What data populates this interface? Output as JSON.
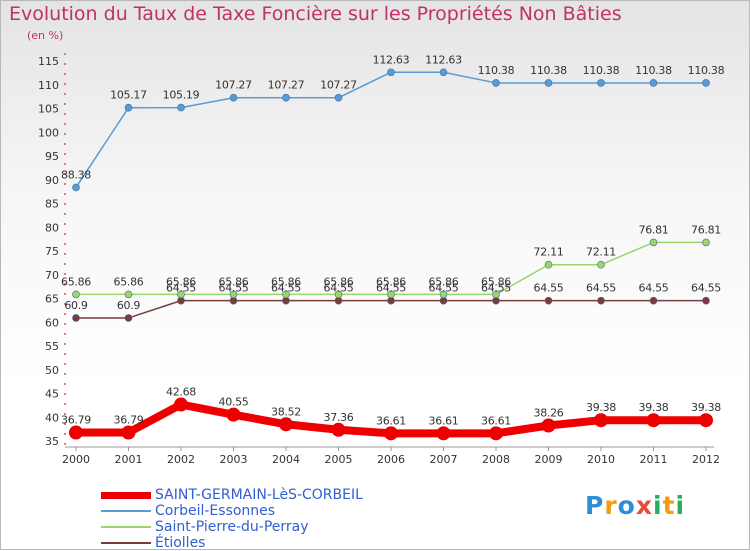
{
  "chart_data": {
    "type": "line",
    "title": "Evolution du Taux de Taxe Foncière sur les Propriétés Non Bâties",
    "unit_label": "(en %)",
    "x": [
      2000,
      2001,
      2002,
      2003,
      2004,
      2005,
      2006,
      2007,
      2008,
      2009,
      2010,
      2011,
      2012
    ],
    "ylim": [
      35,
      115
    ],
    "yticks": [
      35,
      40,
      45,
      50,
      55,
      60,
      65,
      70,
      75,
      80,
      85,
      90,
      95,
      100,
      105,
      110,
      115
    ],
    "grid": false,
    "series": [
      {
        "name": "SAINT-GERMAIN-LèS-CORBEIL",
        "color": "#ee0000",
        "values": [
          36.79,
          36.79,
          42.68,
          40.55,
          38.52,
          37.36,
          36.61,
          36.61,
          36.61,
          38.26,
          39.38,
          39.38,
          39.38
        ],
        "labels": [
          "36.79",
          "36.79",
          "42.68",
          "40.55",
          "38.52",
          "37.36",
          "36.61",
          "36.61",
          "36.61",
          "38.26",
          "39.38",
          "39.38",
          "39.38"
        ]
      },
      {
        "name": "Corbeil-Essonnes",
        "color": "#5b9bd5",
        "values": [
          88.38,
          105.17,
          105.19,
          107.27,
          107.27,
          107.27,
          112.63,
          112.63,
          110.38,
          110.38,
          110.38,
          110.38,
          110.38
        ],
        "labels": [
          "88.38",
          "105.17",
          "105.19",
          "107.27",
          "107.27",
          "107.27",
          "112.63",
          "112.63",
          "110.38",
          "110.38",
          "110.38",
          "110.38",
          "110.38"
        ]
      },
      {
        "name": "Saint-Pierre-du-Perray",
        "color": "#9ad66a",
        "values": [
          65.86,
          65.86,
          65.86,
          65.86,
          65.86,
          65.86,
          65.86,
          65.86,
          65.86,
          72.11,
          72.11,
          76.81,
          76.81
        ],
        "labels": [
          "65.86",
          "65.86",
          "65.86",
          "65.86",
          "65.86",
          "65.86",
          "65.86",
          "65.86",
          "65.86",
          "72.11",
          "72.11",
          "76.81",
          "76.81"
        ]
      },
      {
        "name": "Étiolles",
        "color": "#7b3b3b",
        "values": [
          60.9,
          60.9,
          64.55,
          64.55,
          64.55,
          64.55,
          64.55,
          64.55,
          64.55,
          64.55,
          64.55,
          64.55,
          64.55
        ],
        "labels": [
          "60.9",
          "60.9",
          "64.55",
          "64.55",
          "64.55",
          "64.55",
          "64.55",
          "64.55",
          "64.55",
          "64.55",
          "64.55",
          "64.55",
          "64.55"
        ]
      }
    ],
    "legend": "bottom-left"
  },
  "brand": {
    "letters": [
      "P",
      "r",
      "o",
      "x",
      "i",
      "t",
      "i"
    ],
    "colors": [
      "#2a8fd8",
      "#f39c12",
      "#2a8fd8",
      "#e74c3c",
      "#27ae60",
      "#f39c12",
      "#27ae60"
    ]
  }
}
